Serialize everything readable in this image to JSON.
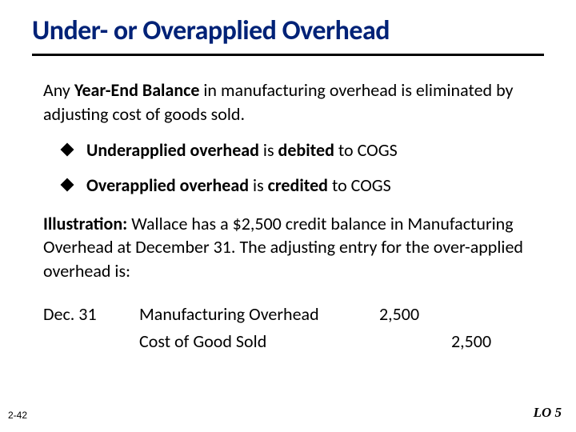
{
  "title": "Under- or Overapplied Overhead",
  "intro_parts": {
    "p1": "Any ",
    "b1": "Year-End Balance",
    "p2": " in manufacturing overhead is eliminated by adjusting cost of goods sold."
  },
  "bullets": [
    {
      "b1": "Underapplied overhead",
      "t1": " is ",
      "b2": "debited",
      "t2": " to COGS"
    },
    {
      "b1": "Overapplied overhead",
      "t1": " is ",
      "b2": "credited",
      "t2": " to COGS"
    }
  ],
  "illustration": {
    "label": "Illustration:",
    "text": "  Wallace has a $2,500 credit balance in Manufacturing Overhead at December 31. The adjusting entry for the over-applied overhead is:"
  },
  "journal": {
    "date": "Dec. 31",
    "lines": [
      {
        "account": "Manufacturing Overhead",
        "debit": "2,500",
        "credit": ""
      },
      {
        "account": "Cost of Good Sold",
        "debit": "",
        "credit": "2,500"
      }
    ]
  },
  "page_num": "2-42",
  "lo": "LO 5",
  "colors": {
    "title": "#002277",
    "rule": "#000000",
    "text": "#000000",
    "background": "#ffffff"
  }
}
